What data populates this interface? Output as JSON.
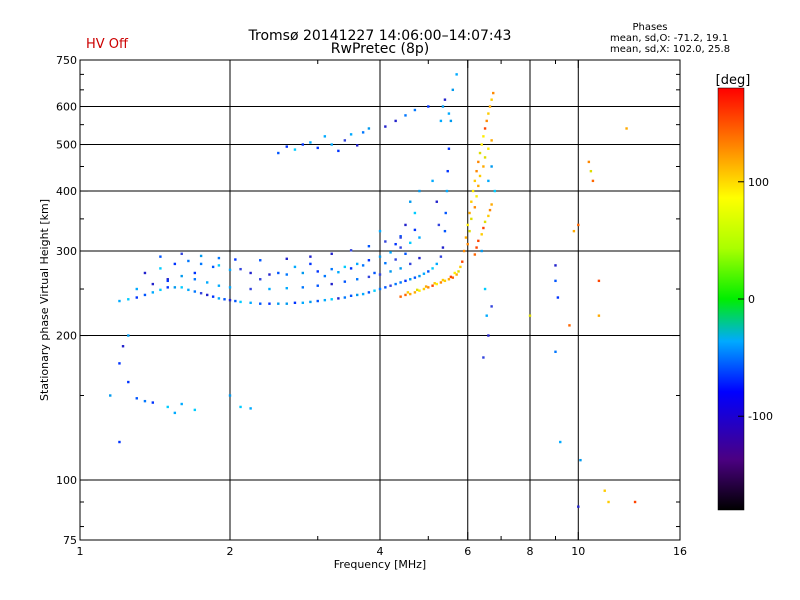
{
  "hv_status": "HV Off",
  "colors": {
    "hv_status": "#cc0000",
    "grid": "#000000"
  },
  "chart_data": {
    "type": "scatter",
    "title": "Tromsø 20141227 14:06:00–14:07:43",
    "subtitle": "RwPretec (8p)",
    "xlabel": "Frequency [MHz]",
    "ylabel": "Stationary phase Virtual Height [km]",
    "x_scale": "log",
    "y_scale": "log",
    "xlim": [
      1,
      16
    ],
    "ylim": [
      75,
      750
    ],
    "x_ticks": [
      1,
      2,
      4,
      6,
      8,
      10,
      16
    ],
    "x_tick_labels": [
      "1",
      "2",
      "4",
      "6",
      "8",
      "10",
      "16"
    ],
    "x_minor_ticks": [
      3,
      5,
      7,
      9
    ],
    "y_ticks": [
      75,
      100,
      200,
      300,
      400,
      500,
      600,
      750
    ],
    "y_tick_labels": [
      "75",
      "100",
      "200",
      "300",
      "400",
      "500",
      "600",
      "750"
    ],
    "y_minor_ticks": [
      80,
      90,
      150,
      250,
      350,
      450,
      550,
      650,
      700
    ],
    "grid": true,
    "phases_annotation": {
      "title": "Phases",
      "o_mode": "mean, sd,O: -71.2, 19.1",
      "x_mode": "mean, sd,X: 102.0, 25.8"
    },
    "colorbar": {
      "label": "[deg]",
      "range": [
        -180,
        180
      ],
      "ticks": [
        100,
        0,
        -100
      ],
      "tick_labels": [
        "100",
        "0",
        "-100"
      ]
    },
    "series": [
      {
        "mode": "O",
        "points": [
          [
            1.2,
            236
          ],
          [
            1.25,
            238
          ],
          [
            1.3,
            240
          ],
          [
            1.35,
            243
          ],
          [
            1.4,
            246
          ],
          [
            1.45,
            249
          ],
          [
            1.5,
            252
          ],
          [
            1.55,
            252
          ],
          [
            1.6,
            252
          ],
          [
            1.65,
            249
          ],
          [
            1.7,
            247
          ],
          [
            1.75,
            245
          ],
          [
            1.8,
            243
          ],
          [
            1.85,
            241
          ],
          [
            1.9,
            239
          ],
          [
            1.95,
            238
          ],
          [
            2.0,
            237
          ],
          [
            2.05,
            236
          ],
          [
            2.1,
            235
          ],
          [
            2.2,
            234
          ],
          [
            2.3,
            233
          ],
          [
            2.4,
            233
          ],
          [
            2.5,
            233
          ],
          [
            2.6,
            233
          ],
          [
            2.7,
            234
          ],
          [
            2.8,
            234
          ],
          [
            2.9,
            235
          ],
          [
            3.0,
            236
          ],
          [
            3.1,
            237
          ],
          [
            3.2,
            238
          ],
          [
            3.3,
            239
          ],
          [
            3.4,
            240
          ],
          [
            3.5,
            242
          ],
          [
            3.6,
            243
          ],
          [
            3.7,
            244
          ],
          [
            3.8,
            246
          ],
          [
            3.9,
            248
          ],
          [
            4.0,
            250
          ],
          [
            4.1,
            252
          ],
          [
            4.2,
            254
          ],
          [
            4.3,
            256
          ],
          [
            4.4,
            258
          ],
          [
            4.5,
            260
          ],
          [
            4.6,
            262
          ],
          [
            4.7,
            264
          ],
          [
            4.8,
            266
          ],
          [
            4.9,
            269
          ],
          [
            5.0,
            272
          ],
          [
            5.1,
            276
          ],
          [
            5.2,
            282
          ],
          [
            5.3,
            292
          ],
          [
            5.35,
            305
          ],
          [
            5.4,
            330
          ],
          [
            5.42,
            360
          ],
          [
            5.45,
            400
          ],
          [
            5.47,
            440
          ],
          [
            5.5,
            490
          ],
          [
            1.3,
            250
          ],
          [
            1.4,
            256
          ],
          [
            1.5,
            262
          ],
          [
            1.6,
            266
          ],
          [
            1.7,
            262
          ],
          [
            1.8,
            258
          ],
          [
            1.9,
            254
          ],
          [
            2.0,
            252
          ],
          [
            2.2,
            250
          ],
          [
            2.4,
            250
          ],
          [
            2.6,
            251
          ],
          [
            2.8,
            252
          ],
          [
            3.0,
            254
          ],
          [
            3.2,
            256
          ],
          [
            3.4,
            259
          ],
          [
            3.6,
            262
          ],
          [
            3.8,
            265
          ],
          [
            4.0,
            268
          ],
          [
            4.2,
            272
          ],
          [
            4.4,
            276
          ],
          [
            4.6,
            282
          ],
          [
            4.8,
            290
          ],
          [
            1.35,
            270
          ],
          [
            1.45,
            276
          ],
          [
            1.55,
            282
          ],
          [
            1.65,
            286
          ],
          [
            1.75,
            282
          ],
          [
            1.85,
            278
          ],
          [
            2.0,
            274
          ],
          [
            2.2,
            270
          ],
          [
            2.4,
            268
          ],
          [
            2.6,
            268
          ],
          [
            2.8,
            270
          ],
          [
            3.0,
            272
          ],
          [
            3.2,
            275
          ],
          [
            3.4,
            278
          ],
          [
            3.6,
            282
          ],
          [
            3.8,
            287
          ],
          [
            4.0,
            292
          ],
          [
            4.2,
            298
          ],
          [
            4.4,
            305
          ],
          [
            4.6,
            312
          ],
          [
            4.8,
            320
          ],
          [
            1.45,
            292
          ],
          [
            1.6,
            296
          ],
          [
            1.75,
            293
          ],
          [
            1.9,
            290
          ],
          [
            2.05,
            288
          ],
          [
            2.3,
            287
          ],
          [
            2.6,
            289
          ],
          [
            2.9,
            292
          ],
          [
            3.2,
            296
          ],
          [
            3.5,
            301
          ],
          [
            3.8,
            307
          ],
          [
            4.1,
            314
          ],
          [
            4.4,
            322
          ],
          [
            4.7,
            332
          ],
          [
            1.5,
            260
          ],
          [
            1.7,
            270
          ],
          [
            1.9,
            280
          ],
          [
            2.1,
            275
          ],
          [
            2.3,
            262
          ],
          [
            2.5,
            270
          ],
          [
            2.7,
            278
          ],
          [
            2.9,
            282
          ],
          [
            3.1,
            266
          ],
          [
            3.3,
            271
          ],
          [
            3.5,
            276
          ],
          [
            3.7,
            280
          ],
          [
            3.9,
            270
          ],
          [
            4.1,
            283
          ],
          [
            4.3,
            288
          ],
          [
            4.5,
            296
          ],
          [
            2.5,
            480
          ],
          [
            2.6,
            495
          ],
          [
            2.7,
            488
          ],
          [
            2.8,
            500
          ],
          [
            2.9,
            505
          ],
          [
            3.0,
            492
          ],
          [
            3.1,
            520
          ],
          [
            3.2,
            500
          ],
          [
            3.3,
            485
          ],
          [
            3.4,
            510
          ],
          [
            3.5,
            525
          ],
          [
            3.6,
            498
          ],
          [
            3.7,
            530
          ],
          [
            3.8,
            540
          ],
          [
            4.1,
            545
          ],
          [
            4.3,
            560
          ],
          [
            4.5,
            575
          ],
          [
            4.7,
            590
          ],
          [
            5.0,
            600
          ],
          [
            1.15,
            150
          ],
          [
            1.2,
            175
          ],
          [
            1.25,
            160
          ],
          [
            1.3,
            148
          ],
          [
            1.35,
            146
          ],
          [
            1.4,
            145
          ],
          [
            1.5,
            142
          ],
          [
            1.55,
            138
          ],
          [
            1.6,
            144
          ],
          [
            1.7,
            140
          ],
          [
            2.0,
            150
          ],
          [
            2.1,
            142
          ],
          [
            2.2,
            141
          ],
          [
            1.2,
            120
          ],
          [
            1.25,
            200
          ],
          [
            1.22,
            190
          ],
          [
            5.3,
            560
          ],
          [
            5.35,
            600
          ],
          [
            5.4,
            620
          ],
          [
            5.5,
            580
          ],
          [
            5.55,
            560
          ],
          [
            5.6,
            650
          ],
          [
            5.7,
            700
          ],
          [
            5.1,
            420
          ],
          [
            5.2,
            380
          ],
          [
            5.25,
            340
          ],
          [
            4.6,
            380
          ],
          [
            4.7,
            360
          ],
          [
            4.8,
            400
          ],
          [
            4.5,
            340
          ],
          [
            4.4,
            320
          ],
          [
            4.0,
            330
          ],
          [
            4.3,
            310
          ],
          [
            6.4,
            300
          ],
          [
            6.5,
            250
          ],
          [
            6.6,
            200
          ],
          [
            6.55,
            220
          ],
          [
            6.45,
            180
          ],
          [
            6.7,
            230
          ],
          [
            6.8,
            400
          ],
          [
            6.6,
            420
          ],
          [
            6.7,
            450
          ],
          [
            9.0,
            280
          ],
          [
            9.1,
            240
          ],
          [
            9.0,
            185
          ],
          [
            9.2,
            120
          ],
          [
            10.1,
            110
          ],
          [
            10.0,
            88
          ],
          [
            9.0,
            260
          ]
        ]
      },
      {
        "mode": "X",
        "points": [
          [
            4.5,
            243
          ],
          [
            4.6,
            244
          ],
          [
            4.7,
            246
          ],
          [
            4.8,
            248
          ],
          [
            4.9,
            250
          ],
          [
            5.0,
            252
          ],
          [
            5.1,
            254
          ],
          [
            5.2,
            256
          ],
          [
            5.3,
            258
          ],
          [
            5.4,
            260
          ],
          [
            5.5,
            262
          ],
          [
            5.6,
            264
          ],
          [
            5.7,
            268
          ],
          [
            5.75,
            272
          ],
          [
            5.8,
            278
          ],
          [
            5.85,
            285
          ],
          [
            4.4,
            241
          ],
          [
            4.55,
            246
          ],
          [
            4.75,
            249
          ],
          [
            4.95,
            253
          ],
          [
            5.15,
            257
          ],
          [
            5.35,
            261
          ],
          [
            5.55,
            265
          ],
          [
            5.65,
            270
          ],
          [
            5.9,
            300
          ],
          [
            5.95,
            320
          ],
          [
            6.0,
            340
          ],
          [
            6.05,
            360
          ],
          [
            6.1,
            380
          ],
          [
            6.15,
            400
          ],
          [
            6.2,
            420
          ],
          [
            6.25,
            440
          ],
          [
            6.3,
            460
          ],
          [
            6.35,
            480
          ],
          [
            6.4,
            500
          ],
          [
            6.45,
            520
          ],
          [
            6.5,
            540
          ],
          [
            6.55,
            560
          ],
          [
            6.6,
            580
          ],
          [
            6.65,
            600
          ],
          [
            6.7,
            620
          ],
          [
            6.75,
            640
          ],
          [
            6.0,
            310
          ],
          [
            6.05,
            330
          ],
          [
            6.1,
            350
          ],
          [
            6.2,
            370
          ],
          [
            6.25,
            390
          ],
          [
            6.3,
            410
          ],
          [
            6.35,
            430
          ],
          [
            6.45,
            450
          ],
          [
            6.5,
            470
          ],
          [
            6.6,
            490
          ],
          [
            6.7,
            510
          ],
          [
            6.2,
            295
          ],
          [
            6.25,
            305
          ],
          [
            6.3,
            315
          ],
          [
            6.4,
            325
          ],
          [
            6.45,
            335
          ],
          [
            6.5,
            345
          ],
          [
            6.6,
            355
          ],
          [
            6.65,
            365
          ],
          [
            6.7,
            375
          ],
          [
            10.5,
            460
          ],
          [
            10.6,
            440
          ],
          [
            10.7,
            420
          ],
          [
            11.0,
            260
          ],
          [
            11.0,
            220
          ],
          [
            11.5,
            90
          ],
          [
            11.3,
            95
          ],
          [
            12.5,
            540
          ],
          [
            13.0,
            90
          ],
          [
            10.0,
            340
          ],
          [
            8.0,
            220
          ],
          [
            9.6,
            210
          ],
          [
            9.8,
            330
          ]
        ]
      }
    ]
  }
}
